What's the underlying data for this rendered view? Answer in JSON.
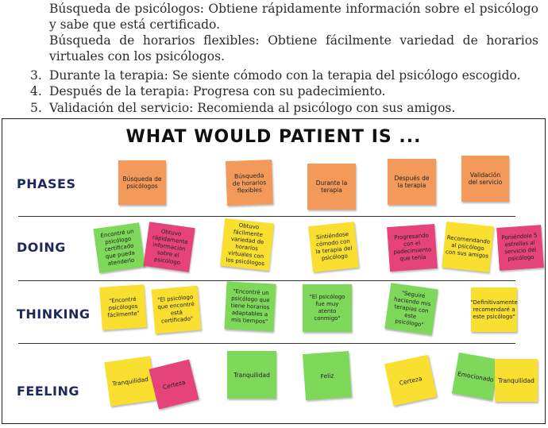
{
  "document": {
    "paragraphs": [
      "Búsqueda de psicólogos: Obtiene rápidamente información sobre el psicólogo y sabe que está certificado.",
      "Búsqueda de horarios flexibles: Obtiene fácilmente variedad de horarios virtuales con los psicólogos."
    ],
    "list": [
      {
        "num": "3.",
        "text": "Durante la terapia: Se siente cómodo con la terapia del psicólogo escogido."
      },
      {
        "num": "4.",
        "text": "Después de la terapia: Progresa con su padecimiento."
      },
      {
        "num": "5.",
        "text": "Validación del servicio: Recomienda al psicólogo con sus amigos."
      }
    ]
  },
  "board": {
    "title": "WHAT WOULD PATIENT IS ...",
    "rows": [
      "PHASES",
      "DOING",
      "THINKING",
      "FEELING"
    ],
    "phases": [
      "Búsqueda de psicólogos",
      "Búsqueda de horarios flexibles",
      "Durante la terapia",
      "Después de la terapia",
      "Validación del servicio"
    ],
    "doing": [
      "Encontré un psicólogo certificado que pueda atenderlo",
      "Obtuvo rápidamente información sobre el psicólogo",
      "Obtuvo fácilmente variedad de horarios virtuales con los psicólogos",
      "Sintiéndose cómodo con la terapia del psicólogo",
      "Progresando con el padecimiento que tenía",
      "Recomendando al psicólogo con sus amigos",
      "Poniéndole 5 estrellas al servicio del psicólogo"
    ],
    "thinking": [
      "\"Encontré psicólogos fácilmente\"",
      "\"El psicólogo que encontré está certificado\"",
      "\"Encontré un psicólogo que tiene horarios adaptables a mis tiempos\"",
      "\"El psicólogo fue muy atento conmigo\"",
      "\"Seguiré haciendo mis terapias con este psicólogo\"",
      "\"Definitivamente recomendaré a este psicólogo\""
    ],
    "feeling": [
      "Tranquilidad",
      "Certeza",
      "Tranquilidad",
      "Feliz",
      "Certeza",
      "Emocionado",
      "Tranquilidad"
    ],
    "colors": {
      "orange": "#f39a5a",
      "green": "#7ed85a",
      "pink": "#e5437a",
      "yellow": "#f9df2f",
      "label": "#1b2a5a"
    }
  }
}
